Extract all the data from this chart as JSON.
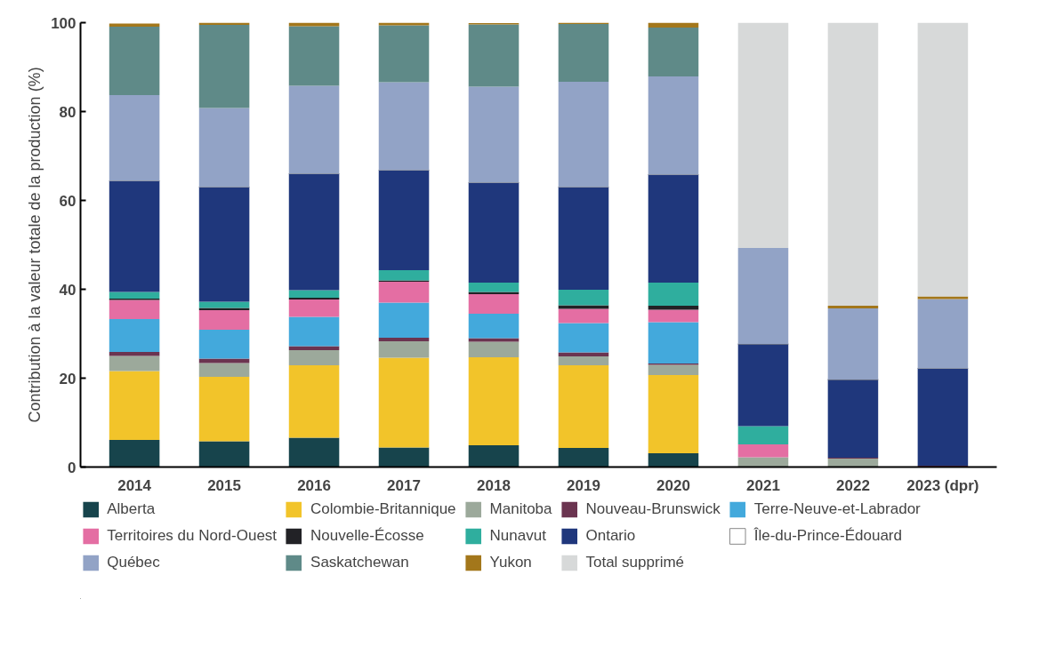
{
  "chart_data": {
    "type": "bar",
    "stacked": true,
    "ylabel": "Contribution à la valeur totale de la production (%)",
    "categories": [
      "2014",
      "2015",
      "2016",
      "2017",
      "2018",
      "2019",
      "2020",
      "2021",
      "2022",
      "2023 (dpr)"
    ],
    "ylim": [
      0,
      100
    ],
    "yticks": [
      0,
      20,
      40,
      60,
      80,
      100
    ],
    "grid": false,
    "legend": "bottom",
    "series": [
      {
        "name": "Alberta",
        "color": "#17444c",
        "values": [
          6.1,
          5.8,
          6.6,
          4.4,
          4.9,
          4.3,
          3.1,
          0,
          0,
          0
        ]
      },
      {
        "name": "Colombie-Britannique",
        "color": "#f2c42a",
        "values": [
          15.5,
          14.5,
          16.3,
          20.2,
          19.8,
          18.6,
          17.6,
          0,
          0,
          0
        ]
      },
      {
        "name": "Manitoba",
        "color": "#9ca99b",
        "values": [
          3.4,
          3.1,
          3.4,
          3.7,
          3.5,
          2.0,
          2.3,
          2.2,
          1.9,
          0
        ]
      },
      {
        "name": "Nouveau-Brunswick",
        "color": "#6b3450",
        "values": [
          0.9,
          1.0,
          0.9,
          0.8,
          0.8,
          0.9,
          0.3,
          0,
          0.2,
          0.3
        ]
      },
      {
        "name": "Terre-Neuve-et-Labrador",
        "color": "#43a9dc",
        "values": [
          7.4,
          6.5,
          6.6,
          7.9,
          5.5,
          6.6,
          9.3,
          0,
          0,
          0
        ]
      },
      {
        "name": "Territoires du Nord-Ouest",
        "color": "#e46ea3",
        "values": [
          4.3,
          4.4,
          3.9,
          4.7,
          4.4,
          3.2,
          2.8,
          2.9,
          0,
          0
        ]
      },
      {
        "name": "Nouvelle-Écosse",
        "color": "#222226",
        "values": [
          0.3,
          0.5,
          0.4,
          0.3,
          0.5,
          0.8,
          0.9,
          0,
          0,
          0
        ]
      },
      {
        "name": "Nunavut",
        "color": "#2fae9e",
        "values": [
          1.5,
          1.4,
          1.7,
          2.3,
          2.1,
          3.5,
          5.2,
          4.1,
          0,
          0
        ]
      },
      {
        "name": "Ontario",
        "color": "#1f377c",
        "values": [
          25.0,
          25.8,
          26.2,
          22.5,
          22.5,
          23.1,
          24.3,
          18.5,
          17.6,
          21.9
        ]
      },
      {
        "name": "Île-du-Prince-Édouard",
        "color": "#ffffff",
        "values": [
          0,
          0,
          0,
          0,
          0,
          0,
          0,
          0,
          0,
          0
        ]
      },
      {
        "name": "Québec",
        "color": "#92a3c6",
        "values": [
          19.3,
          17.8,
          19.8,
          19.8,
          21.6,
          23.7,
          22.1,
          21.6,
          16.0,
          15.6
        ]
      },
      {
        "name": "Saskatchewan",
        "color": "#5f8a88",
        "values": [
          15.4,
          18.7,
          13.4,
          12.8,
          14.0,
          13.0,
          11.0,
          0,
          0,
          0
        ]
      },
      {
        "name": "Yukon",
        "color": "#a3771b",
        "values": [
          0.7,
          0.5,
          0.8,
          0.6,
          0.3,
          0.3,
          1.1,
          0,
          0.6,
          0.6
        ]
      },
      {
        "name": "Total supprimé",
        "color": "#d7d9d9",
        "values": [
          0,
          0,
          0,
          0,
          0,
          0,
          0,
          50.7,
          63.7,
          61.6
        ]
      }
    ]
  }
}
